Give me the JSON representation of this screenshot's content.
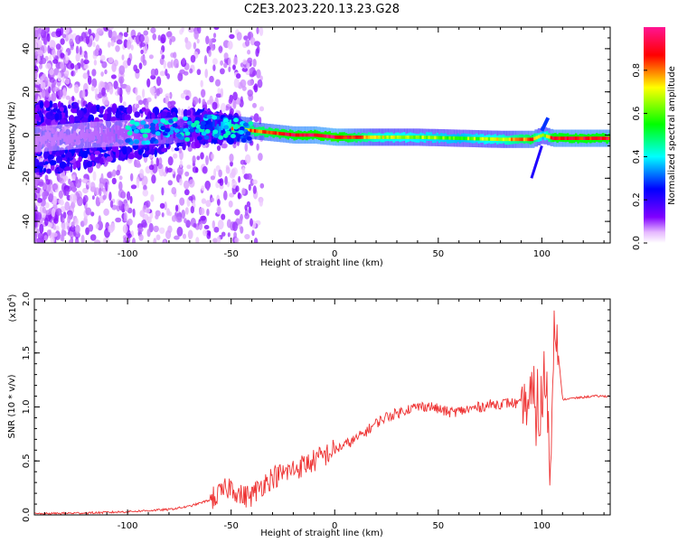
{
  "title": "C2E3.2023.220.13.23.G28",
  "chart_data": [
    {
      "type": "heatmap",
      "xlabel": "Height of straight line (km)",
      "ylabel": "Frequency (Hz)",
      "xlim": [
        -145,
        133
      ],
      "ylim": [
        -50,
        50
      ],
      "x_ticks": [
        -100,
        -50,
        0,
        50,
        100
      ],
      "y_ticks": [
        -40,
        -20,
        0,
        20,
        40
      ],
      "colorbar": {
        "label": "Normalized spectral amplitude",
        "range": [
          0.0,
          1.0
        ],
        "ticks": [
          0.0,
          0.2,
          0.4,
          0.6,
          0.8
        ],
        "colormap": [
          "#ffffff",
          "#e6b8ff",
          "#8000ff",
          "#0000ff",
          "#00ffff",
          "#00ff00",
          "#ffff00",
          "#ff0000",
          "#ff1493"
        ]
      },
      "ridge": {
        "x": [
          -145,
          -120,
          -100,
          -80,
          -60,
          -50,
          -40,
          -30,
          -20,
          -10,
          0,
          20,
          40,
          60,
          80,
          95,
          100,
          105,
          133
        ],
        "frequency": [
          -2,
          0,
          1,
          2,
          4,
          3,
          2,
          1,
          0,
          0,
          -1,
          -1,
          -1,
          -1.5,
          -2,
          -2,
          0,
          -1.5,
          -1.5
        ],
        "amplitude": [
          0.12,
          0.13,
          0.15,
          0.2,
          0.45,
          0.75,
          0.8,
          0.85,
          0.9,
          0.92,
          0.95,
          0.7,
          0.65,
          0.6,
          0.7,
          0.85,
          0.6,
          0.9,
          0.9
        ]
      },
      "spur": {
        "x": [
          95,
          100
        ],
        "frequency": [
          -20,
          -5
        ]
      }
    },
    {
      "type": "line",
      "xlabel": "Height of straight line (km)",
      "ylabel": "SNR (10 * v/v)",
      "y_multiplier": "(x10^4)",
      "xlim": [
        -145,
        133
      ],
      "ylim": [
        0,
        2.0
      ],
      "x_ticks": [
        -100,
        -50,
        0,
        50,
        100
      ],
      "y_ticks": [
        0.0,
        0.5,
        1.0,
        1.5,
        2.0
      ],
      "color": "#ee3333",
      "series": [
        {
          "x": [
            -145,
            -130,
            -115,
            -100,
            -90,
            -80,
            -70,
            -60,
            -55,
            -50,
            -45,
            -40,
            -35,
            -30,
            -25,
            -20,
            -15,
            -10,
            -5,
            0,
            5,
            10,
            15,
            20,
            25,
            30,
            35,
            40,
            45,
            50,
            55,
            60,
            65,
            70,
            75,
            80,
            85,
            90,
            95,
            100,
            102,
            104,
            106,
            110,
            115,
            120,
            125,
            133
          ],
          "values": [
            0.01,
            0.015,
            0.02,
            0.03,
            0.04,
            0.05,
            0.08,
            0.14,
            0.2,
            0.27,
            0.17,
            0.18,
            0.28,
            0.35,
            0.38,
            0.42,
            0.46,
            0.5,
            0.55,
            0.6,
            0.65,
            0.7,
            0.77,
            0.85,
            0.91,
            0.94,
            0.98,
            1.0,
            1.01,
            0.98,
            0.95,
            0.96,
            0.98,
            1.0,
            1.02,
            1.03,
            1.04,
            1.02,
            1.05,
            0.95,
            1.4,
            0.3,
            1.9,
            1.07,
            1.08,
            1.09,
            1.1,
            1.1
          ]
        }
      ]
    }
  ]
}
